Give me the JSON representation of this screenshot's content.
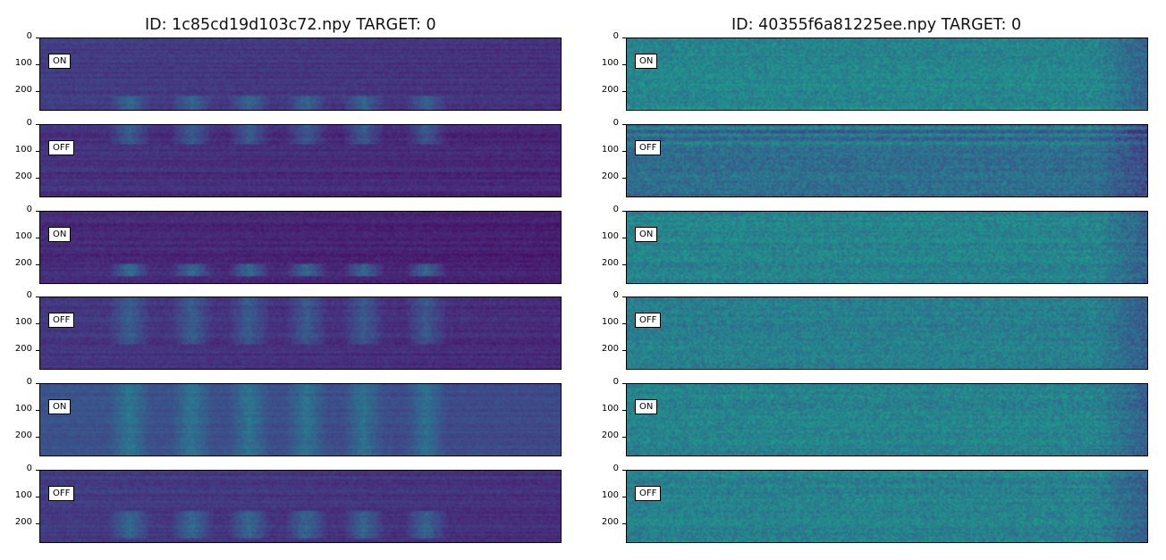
{
  "figure": {
    "left_title": "ID: 1c85cd19d103c72.npy TARGET: 0",
    "right_title": "ID: 40355f6a81225ee.npy TARGET: 0"
  },
  "chart_data": [
    {
      "type": "heatmap",
      "title": "ID: 1c85cd19d103c72.npy TARGET: 0",
      "colormap": "viridis",
      "panels": [
        {
          "label": "ON",
          "y_ticks": [
            0,
            100,
            200
          ],
          "ylim": [
            273,
            0
          ]
        },
        {
          "label": "OFF",
          "y_ticks": [
            0,
            100,
            200
          ],
          "ylim": [
            273,
            0
          ]
        },
        {
          "label": "ON",
          "y_ticks": [
            0,
            100,
            200
          ],
          "ylim": [
            273,
            0
          ]
        },
        {
          "label": "OFF",
          "y_ticks": [
            0,
            100,
            200
          ],
          "ylim": [
            273,
            0
          ]
        },
        {
          "label": "ON",
          "y_ticks": [
            0,
            100,
            200
          ],
          "ylim": [
            273,
            0
          ]
        },
        {
          "label": "OFF",
          "y_ticks": [
            0,
            100,
            200
          ],
          "ylim": [
            273,
            0
          ]
        }
      ]
    },
    {
      "type": "heatmap",
      "title": "ID: 40355f6a81225ee.npy TARGET: 0",
      "colormap": "viridis",
      "panels": [
        {
          "label": "ON",
          "y_ticks": [
            0,
            100,
            200
          ],
          "ylim": [
            273,
            0
          ]
        },
        {
          "label": "OFF",
          "y_ticks": [
            0,
            100,
            200
          ],
          "ylim": [
            273,
            0
          ]
        },
        {
          "label": "ON",
          "y_ticks": [
            0,
            100,
            200
          ],
          "ylim": [
            273,
            0
          ]
        },
        {
          "label": "OFF",
          "y_ticks": [
            0,
            100,
            200
          ],
          "ylim": [
            273,
            0
          ]
        },
        {
          "label": "ON",
          "y_ticks": [
            0,
            100,
            200
          ],
          "ylim": [
            273,
            0
          ]
        },
        {
          "label": "OFF",
          "y_ticks": [
            0,
            100,
            200
          ],
          "ylim": [
            273,
            0
          ]
        }
      ]
    }
  ]
}
